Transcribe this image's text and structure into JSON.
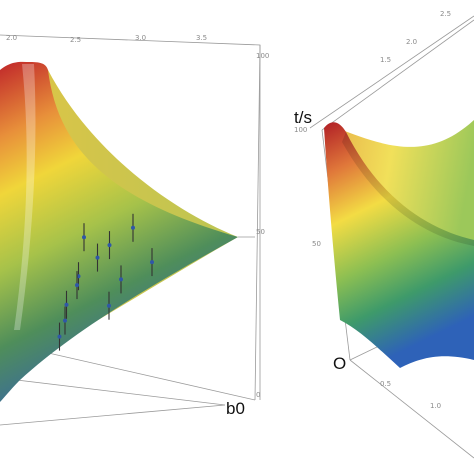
{
  "chart_data": [
    {
      "type": "surface3d",
      "title": "",
      "axes": {
        "x_label": "",
        "y_label": "b0",
        "z_label": "",
        "x_ticks": [
          "2.0",
          "2.5",
          "3.0",
          "3.5"
        ],
        "z_ticks": [
          "100",
          "50",
          "0"
        ]
      },
      "surface": {
        "colormap": [
          "#c0262a",
          "#f0d63a",
          "#6a9a3e",
          "#3460b0"
        ],
        "mesh": false
      },
      "points": [
        {
          "x": 0.4,
          "y": 0.2,
          "z": 60
        },
        {
          "x": 0.55,
          "y": 0.35,
          "z": 55
        },
        {
          "x": 0.45,
          "y": 0.5,
          "z": 48
        },
        {
          "x": 0.35,
          "y": 0.3,
          "z": 42
        },
        {
          "x": 0.6,
          "y": 0.55,
          "z": 38
        },
        {
          "x": 0.7,
          "y": 0.4,
          "z": 62
        },
        {
          "x": 0.3,
          "y": 0.6,
          "z": 35
        },
        {
          "x": 0.25,
          "y": 0.45,
          "z": 28
        },
        {
          "x": 0.5,
          "y": 0.7,
          "z": 25
        },
        {
          "x": 0.8,
          "y": 0.6,
          "z": 45
        },
        {
          "x": 0.2,
          "y": 0.75,
          "z": 18
        },
        {
          "x": 0.15,
          "y": 0.85,
          "z": 10
        }
      ]
    },
    {
      "type": "surface3d",
      "title": "",
      "axes": {
        "z_label": "t/s",
        "origin_label": "O",
        "x_ticks": [
          "2.5",
          "2.0",
          "1.5"
        ],
        "y_ticks": [
          "0.5",
          "1.0"
        ],
        "z_ticks": [
          "100",
          "50"
        ]
      },
      "surface": {
        "colormap": [
          "#b01e26",
          "#f3dc44",
          "#4ea05a",
          "#2e62b8"
        ],
        "mesh": false
      }
    }
  ]
}
